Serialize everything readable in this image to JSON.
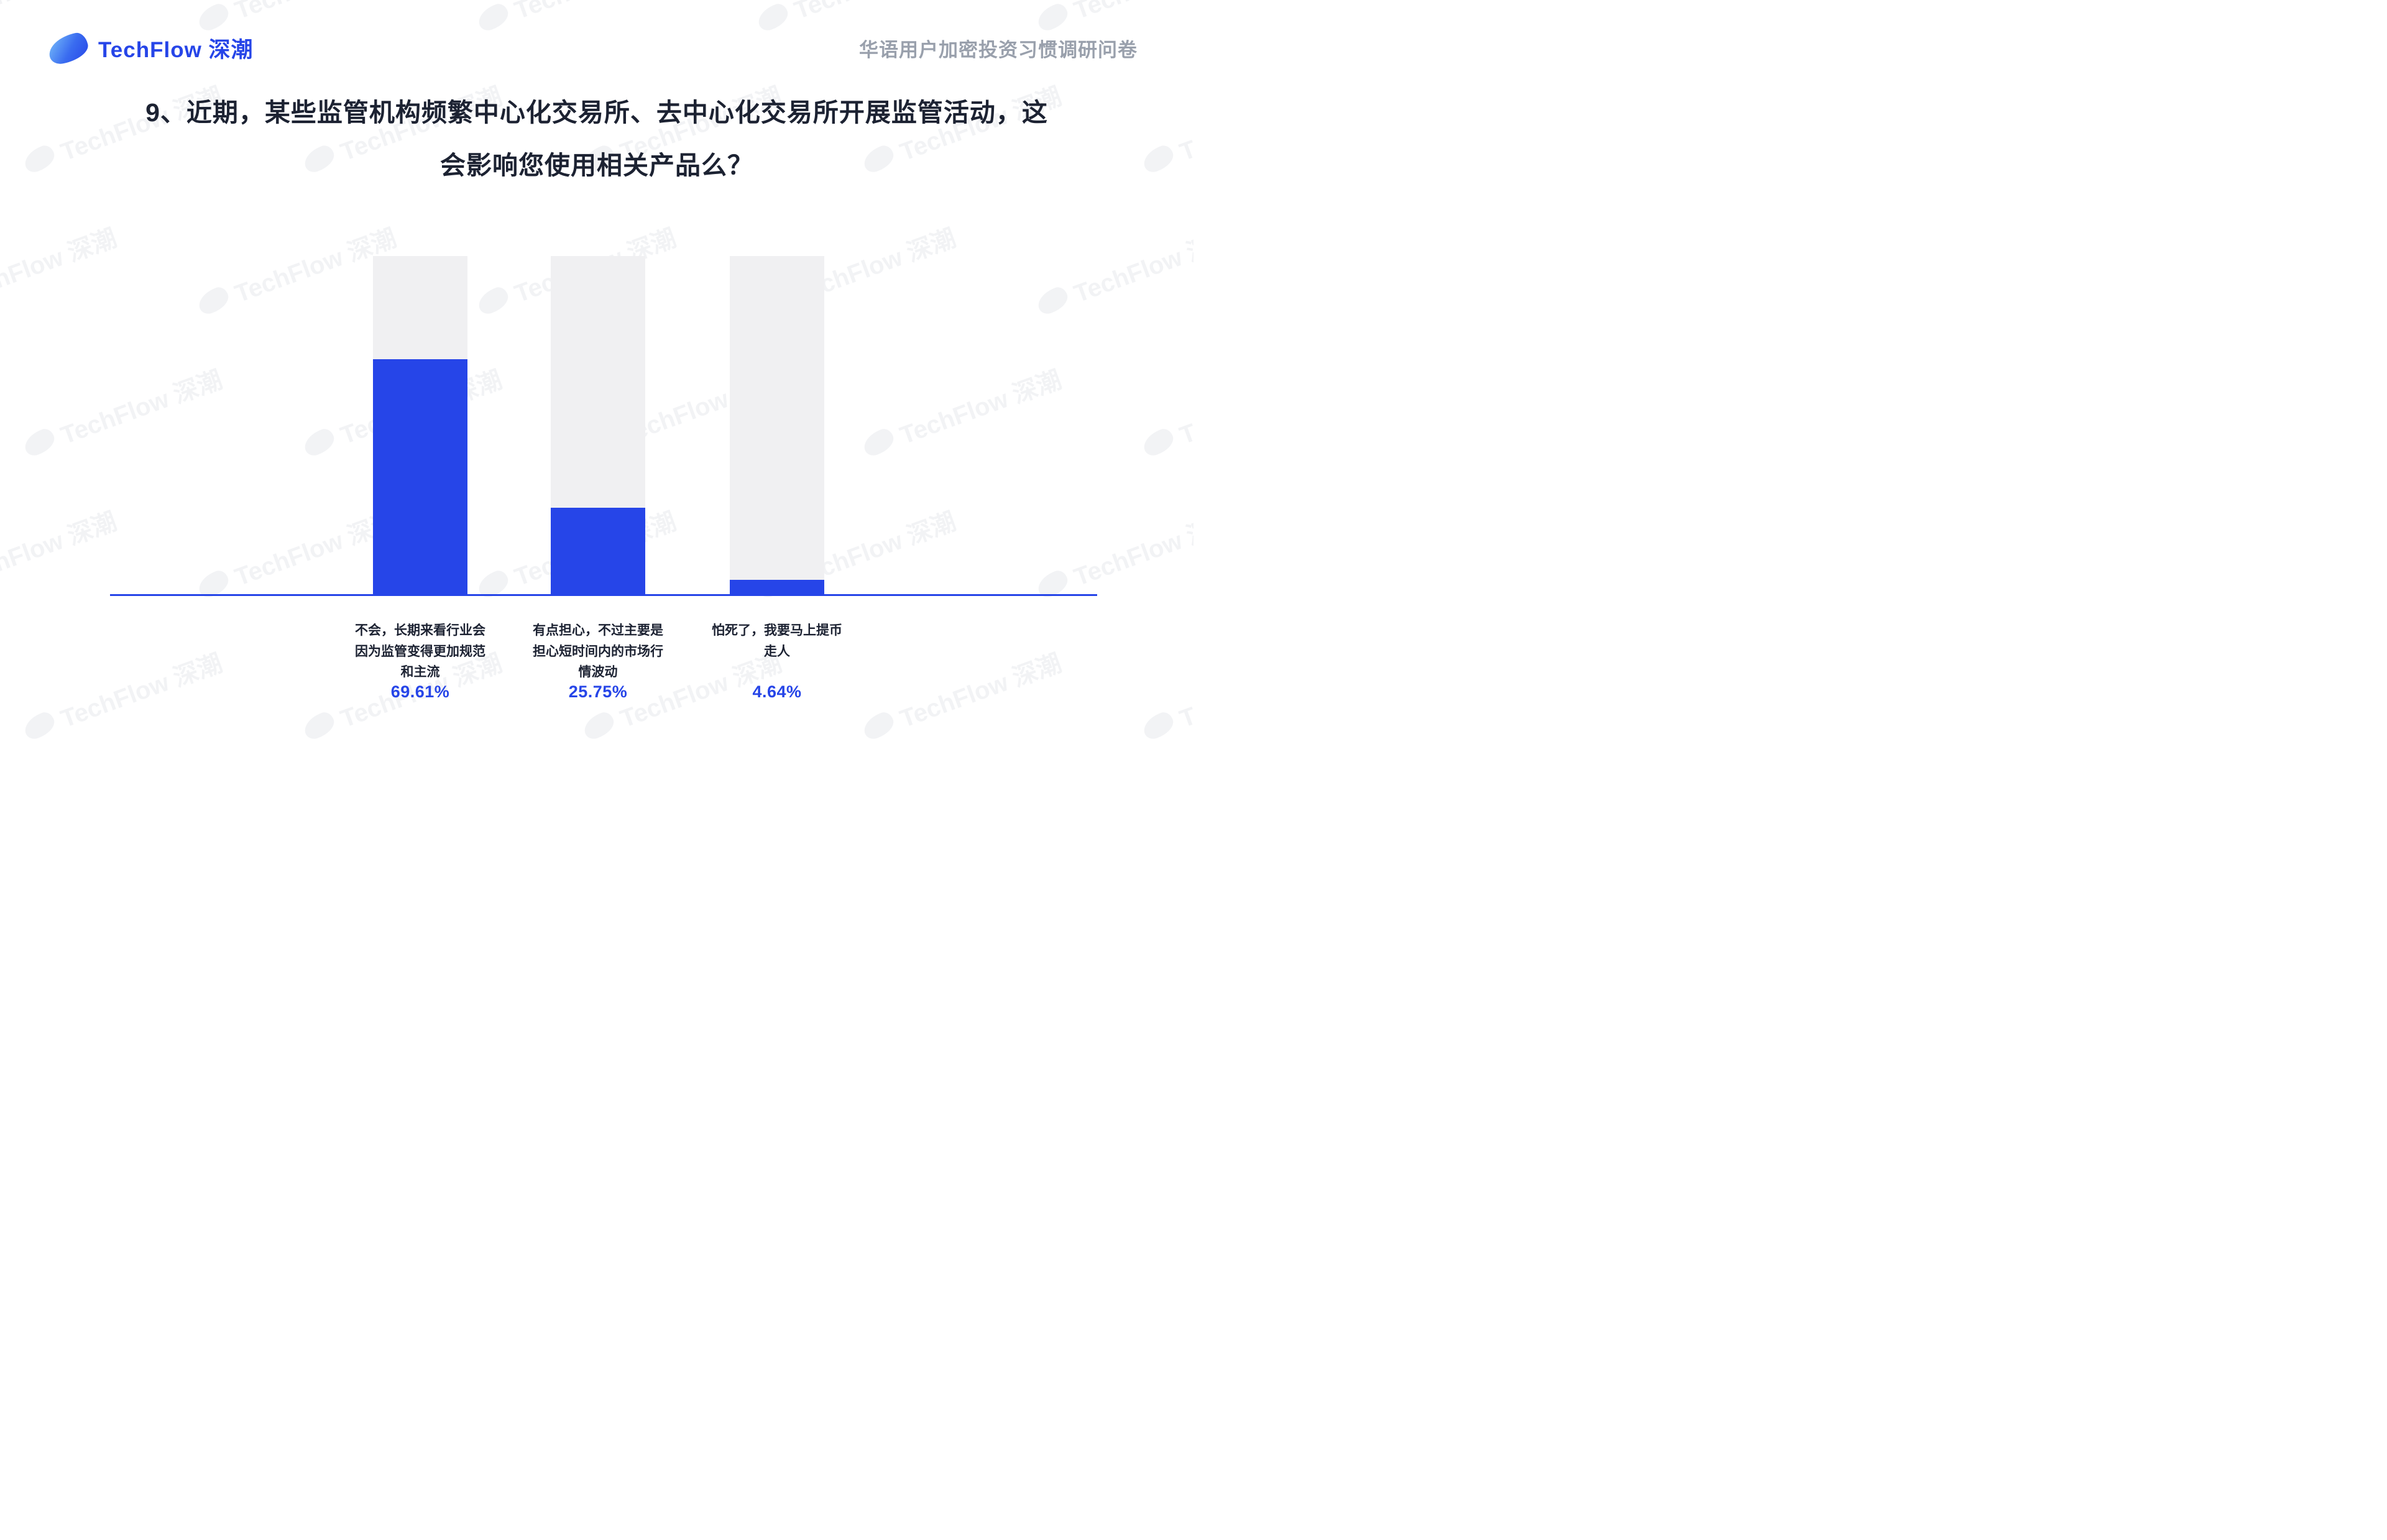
{
  "header": {
    "logo_text": "TechFlow 深潮",
    "survey_title": "华语用户加密投资习惯调研问卷"
  },
  "question": {
    "line1": "9、近期，某些监管机构频繁中心化交易所、去中心化交易所开展监管活动，这",
    "line2": "会影响您使用相关产品么？"
  },
  "watermark": {
    "text": "TechFlow 深潮"
  },
  "colors": {
    "accent_blue": "#2645e8",
    "track_gray": "#f0f0f2",
    "title_dark": "#1c2232",
    "survey_gray": "#99a0ac"
  },
  "chart_data": {
    "type": "bar",
    "title": "9、近期，某些监管机构频繁中心化交易所、去中心化交易所开展监管活动，这会影响您使用相关产品么？",
    "categories": [
      "不会，长期来看行业会因为监管变得更加规范和主流",
      "有点担心，不过主要是担心短时间内的市场行情波动",
      "怕死了，我要马上提币走人"
    ],
    "values": [
      69.61,
      25.75,
      4.64
    ],
    "value_labels": [
      "69.61%",
      "25.75%",
      "4.64%"
    ],
    "xlabel": "",
    "ylabel": "",
    "ylim": [
      0,
      100
    ],
    "grid": false,
    "legend": false,
    "bar_color": "#2645e8",
    "track_color": "#f0f0f2"
  }
}
